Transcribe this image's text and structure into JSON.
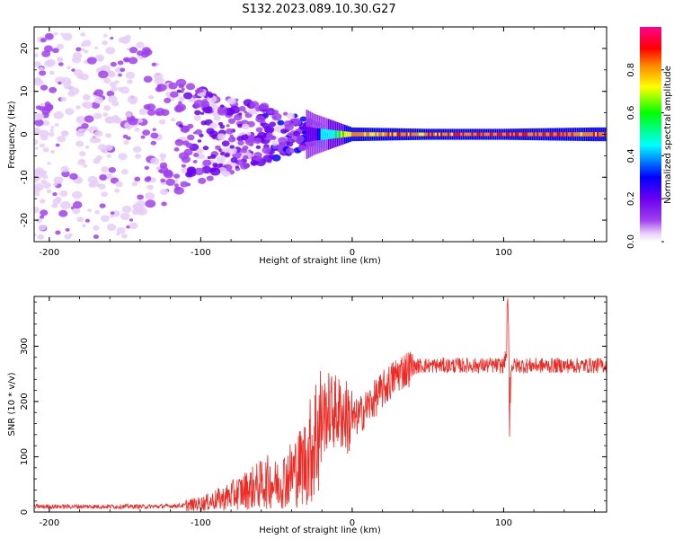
{
  "title": "S132.2023.089.10.30.G27",
  "colors": {
    "snr_line": "#ee2a24",
    "colormap": [
      "#ffffff",
      "#e6ccf7",
      "#a040ee",
      "#6a00f0",
      "#0000ff",
      "#00ffff",
      "#00ff00",
      "#ffff00",
      "#ff8800",
      "#ff0000",
      "#ff0090"
    ]
  },
  "chart_data": [
    {
      "type": "heatmap",
      "title": "S132.2023.089.10.30.G27",
      "xlabel": "Height of straight line (km)",
      "ylabel": "Frequency (Hz)",
      "xlim": [
        -210,
        168
      ],
      "ylim": [
        -25,
        25
      ],
      "x_ticks": [
        -200,
        -100,
        0,
        100
      ],
      "y_ticks": [
        -20,
        -10,
        0,
        10,
        20
      ],
      "colorbar": {
        "label": "Normalized spectral amplitude",
        "range": [
          0,
          1
        ],
        "ticks": [
          "0.0",
          "0.2",
          "0.4",
          "0.6",
          "0.8"
        ]
      },
      "description_points": [
        {
          "x": -200,
          "spread_hz": 24,
          "amplitude": 0.12
        },
        {
          "x": -150,
          "spread_hz": 24,
          "amplitude": 0.12
        },
        {
          "x": -110,
          "spread_hz": 12,
          "amplitude": 0.18
        },
        {
          "x": -80,
          "spread_hz": 9,
          "amplitude": 0.22
        },
        {
          "x": -50,
          "spread_hz": 6,
          "amplitude": 0.25
        },
        {
          "x": -25,
          "spread_hz": 3,
          "amplitude": 0.35
        },
        {
          "x": 0,
          "spread_hz": 1,
          "amplitude": 0.8
        },
        {
          "x": 50,
          "spread_hz": 0.8,
          "amplitude": 0.85
        },
        {
          "x": 100,
          "spread_hz": 0.8,
          "amplitude": 0.9
        },
        {
          "x": 160,
          "spread_hz": 1,
          "amplitude": 0.85
        }
      ]
    },
    {
      "type": "line",
      "xlabel": "Height of straight line (km)",
      "ylabel": "SNR (10 * v/v)",
      "xlim": [
        -210,
        168
      ],
      "ylim": [
        0,
        390
      ],
      "x_ticks": [
        -200,
        -100,
        0,
        100
      ],
      "y_ticks": [
        0,
        100,
        200,
        300
      ],
      "series": [
        {
          "name": "SNR",
          "x": [
            -210,
            -190,
            -170,
            -150,
            -130,
            -110,
            -100,
            -95,
            -90,
            -85,
            -80,
            -75,
            -70,
            -65,
            -60,
            -55,
            -50,
            -45,
            -40,
            -35,
            -30,
            -25,
            -20,
            -15,
            -10,
            -5,
            0,
            5,
            10,
            15,
            20,
            25,
            30,
            35,
            40,
            45,
            50,
            60,
            70,
            80,
            90,
            95,
            100,
            103,
            104,
            105,
            110,
            120,
            130,
            140,
            150,
            160,
            168
          ],
          "y": [
            10,
            10,
            10,
            10,
            10,
            12,
            15,
            18,
            22,
            25,
            30,
            35,
            40,
            45,
            50,
            55,
            50,
            60,
            70,
            80,
            95,
            130,
            170,
            185,
            180,
            175,
            165,
            175,
            190,
            205,
            220,
            235,
            250,
            258,
            262,
            265,
            265,
            265,
            265,
            265,
            265,
            265,
            265,
            300,
            140,
            265,
            265,
            265,
            265,
            265,
            265,
            265,
            265
          ]
        }
      ]
    }
  ]
}
